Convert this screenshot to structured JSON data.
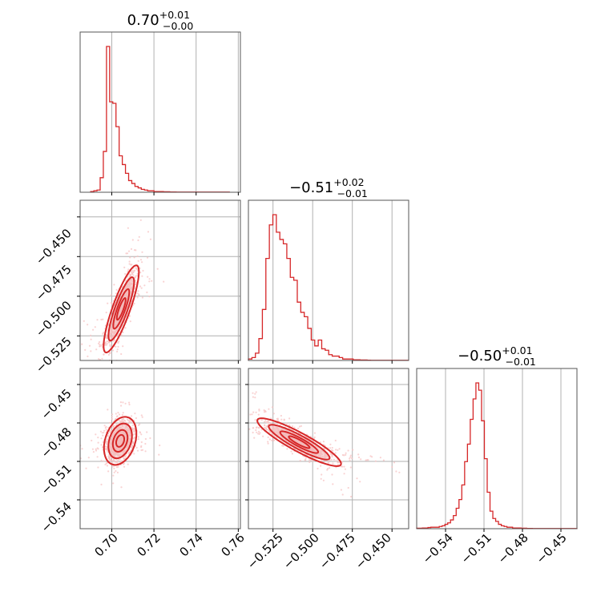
{
  "chart_data": {
    "type": "corner",
    "accent_color": "#d62728",
    "contour_fill": "#f2b8b8",
    "point_color": "#f7c4c4",
    "grid_color": "#b0b0b0",
    "grid": true,
    "titles": [
      {
        "value": "0.70",
        "plus": "+0.01",
        "minus": "−0.00"
      },
      {
        "value": "−0.51",
        "plus": "+0.02",
        "minus": "−0.01"
      },
      {
        "value": "−0.50",
        "plus": "+0.01",
        "minus": "−0.01"
      }
    ],
    "params": [
      {
        "range": [
          0.685,
          0.761
        ],
        "ticks": [
          0.7,
          0.72,
          0.74,
          0.76
        ],
        "tick_labels": [
          "0.70",
          "0.72",
          "0.74",
          "0.76"
        ]
      },
      {
        "range": [
          -0.5405,
          -0.4395
        ],
        "ticks": [
          -0.525,
          -0.5,
          -0.475,
          -0.45
        ],
        "tick_labels": [
          "−0.525",
          "−0.500",
          "−0.475",
          "−0.450"
        ]
      },
      {
        "range": [
          -0.5625,
          -0.4375
        ],
        "ticks": [
          -0.54,
          -0.51,
          -0.48,
          -0.45
        ],
        "tick_labels": [
          "−0.54",
          "−0.51",
          "−0.48",
          "−0.45"
        ]
      }
    ],
    "histograms": [
      {
        "bin_start": 0.69,
        "bin_width": 0.0015,
        "counts": [
          0.5,
          1,
          1.5,
          10,
          28,
          100,
          62,
          61,
          45,
          25,
          19,
          13,
          8,
          6,
          4,
          3,
          2,
          1.5,
          1,
          1,
          0.5,
          0.5,
          0.5,
          0.3,
          0.3,
          0.2,
          0.2,
          0.1,
          0.1,
          0.1,
          0.1,
          0.1,
          0.1,
          0.1,
          0.1,
          0.1,
          0.1,
          0.1,
          0.1,
          0.1,
          0.1,
          0.1,
          0.1,
          0.1
        ]
      },
      {
        "bin_start": -0.5405,
        "bin_width": 0.0022,
        "counts": [
          1,
          2,
          5,
          15,
          35,
          70,
          93,
          100,
          88,
          83,
          80,
          70,
          57,
          55,
          40,
          33,
          30,
          22,
          14,
          10,
          14,
          8,
          7,
          4,
          3,
          3,
          2,
          1,
          1,
          1,
          0.5,
          0.5,
          0.3,
          0.3,
          0.2,
          0.1,
          0.1,
          0.1,
          0.1,
          0.1,
          0.1,
          0.1,
          0.1,
          0.1,
          0.1,
          0.1
        ]
      },
      {
        "bin_start": -0.5625,
        "bin_width": 0.0022,
        "counts": [
          0.3,
          0.3,
          0.5,
          0.5,
          0.8,
          1,
          1,
          1,
          1.5,
          2,
          3,
          4,
          6,
          9,
          14,
          20,
          30,
          46,
          58,
          75,
          89,
          100,
          95,
          74,
          48,
          25,
          12,
          7,
          5,
          3,
          2,
          1.5,
          1,
          1,
          0.5,
          0.5,
          0.5,
          0.3,
          0.3,
          0.2,
          0.2,
          0.1,
          0.1,
          0.1,
          0.1,
          0.1,
          0.1,
          0.1,
          0.1,
          0.1,
          0.1,
          0.1,
          0.1,
          0.1,
          0.1,
          0.1,
          0.1
        ]
      }
    ],
    "scatter_panels": [
      {
        "x": 0,
        "y": 1,
        "center": [
          0.7045,
          -0.508
        ],
        "sd": [
          0.0038,
          0.0125
        ],
        "corr": 0.85
      },
      {
        "x": 0,
        "y": 2,
        "center": [
          0.704,
          -0.494
        ],
        "sd": [
          0.0035,
          0.0085
        ],
        "corr": 0.3
      },
      {
        "x": 1,
        "y": 2,
        "center": [
          -0.5085,
          -0.495
        ],
        "sd": [
          0.012,
          0.0085
        ],
        "corr": -0.9
      }
    ]
  }
}
